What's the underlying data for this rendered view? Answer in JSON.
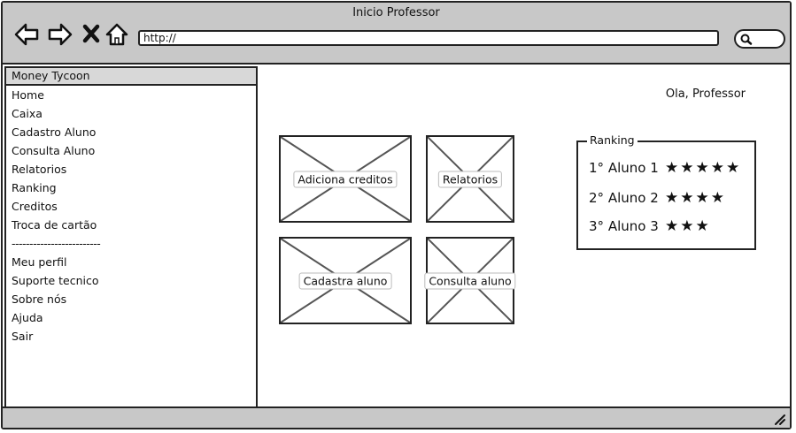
{
  "window": {
    "title": "Inicio Professor",
    "url": "http://"
  },
  "icons": {
    "back": "back-arrow-icon",
    "forward": "forward-arrow-icon",
    "stop": "close-icon",
    "home": "home-icon",
    "search": "search-icon",
    "resize": "resize-grip-icon"
  },
  "sidebar": {
    "header": "Money Tycoon",
    "items_top": [
      {
        "label": "Home"
      },
      {
        "label": "Caixa"
      },
      {
        "label": "Cadastro Aluno"
      },
      {
        "label": "Consulta Aluno"
      },
      {
        "label": "Relatorios"
      },
      {
        "label": "Ranking"
      },
      {
        "label": "Creditos"
      },
      {
        "label": "Troca de cartão"
      }
    ],
    "separator": "-------------------------",
    "items_bottom": [
      {
        "label": "Meu perfil"
      },
      {
        "label": "Suporte tecnico"
      },
      {
        "label": "Sobre nós"
      },
      {
        "label": "Ajuda"
      },
      {
        "label": "Sair"
      }
    ]
  },
  "main": {
    "greeting": "Ola, Professor",
    "tiles": [
      {
        "label": "Adiciona creditos"
      },
      {
        "label": "Relatorios"
      },
      {
        "label": "Cadastra aluno"
      },
      {
        "label": "Consulta aluno"
      }
    ]
  },
  "ranking": {
    "title": "Ranking",
    "entries": [
      {
        "position": "1°",
        "name": "Aluno 1",
        "stars": 5,
        "stars_text": "★★★★★"
      },
      {
        "position": "2°",
        "name": "Aluno 2",
        "stars": 4,
        "stars_text": "★★★★"
      },
      {
        "position": "3°",
        "name": "Aluno 3",
        "stars": 3,
        "stars_text": "★★★"
      }
    ]
  },
  "colors": {
    "chrome": "#c8c8c8",
    "border": "#222222",
    "sidebar_header": "#d8d8d8",
    "placeholder_x": "#555555"
  }
}
